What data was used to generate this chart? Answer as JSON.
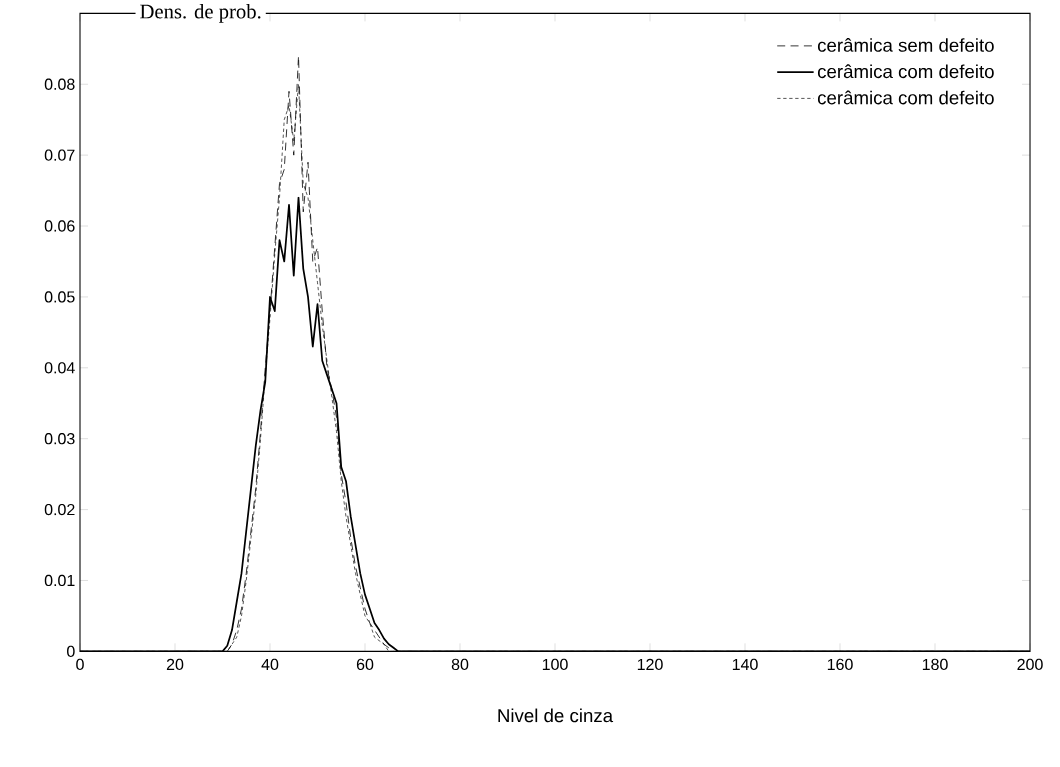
{
  "chart_data": {
    "type": "line",
    "xlabel": "Nivel de cinza",
    "ylabel": "Dens. de prob.",
    "xlim": [
      0,
      200
    ],
    "ylim": [
      0,
      0.09
    ],
    "xticks": [
      0,
      20,
      40,
      60,
      80,
      100,
      120,
      140,
      160,
      180,
      200
    ],
    "yticks": [
      0,
      0.01,
      0.02,
      0.03,
      0.04,
      0.05,
      0.06,
      0.07,
      0.08
    ],
    "legend": "top right",
    "grid": false,
    "series": [
      {
        "name": "cerâmica sem defeito",
        "color": "#000000",
        "line_style": "dashed",
        "x": [
          0,
          31,
          32,
          33,
          34,
          35,
          36,
          37,
          38,
          39,
          40,
          41,
          42,
          43,
          44,
          45,
          46,
          47,
          48,
          49,
          50,
          51,
          52,
          53,
          54,
          55,
          56,
          57,
          58,
          59,
          60,
          61,
          62,
          63,
          64,
          65,
          66,
          200
        ],
        "values": [
          0,
          0,
          0.001,
          0.003,
          0.006,
          0.011,
          0.017,
          0.023,
          0.031,
          0.04,
          0.048,
          0.057,
          0.066,
          0.068,
          0.079,
          0.07,
          0.084,
          0.062,
          0.069,
          0.055,
          0.057,
          0.048,
          0.04,
          0.037,
          0.033,
          0.025,
          0.021,
          0.016,
          0.012,
          0.009,
          0.006,
          0.004,
          0.003,
          0.002,
          0.001,
          0.0005,
          0,
          0
        ]
      },
      {
        "name": "cerâmica com defeito",
        "color": "#000000",
        "line_style": "solid",
        "x": [
          0,
          29,
          30,
          31,
          32,
          33,
          34,
          35,
          36,
          37,
          38,
          39,
          40,
          41,
          42,
          43,
          44,
          45,
          46,
          47,
          48,
          49,
          50,
          51,
          52,
          53,
          54,
          55,
          56,
          57,
          58,
          59,
          60,
          61,
          62,
          63,
          64,
          65,
          66,
          67,
          200
        ],
        "values": [
          0,
          0,
          0,
          0.0008,
          0.003,
          0.007,
          0.011,
          0.017,
          0.023,
          0.029,
          0.034,
          0.038,
          0.05,
          0.048,
          0.058,
          0.055,
          0.063,
          0.053,
          0.064,
          0.054,
          0.05,
          0.043,
          0.049,
          0.041,
          0.039,
          0.037,
          0.035,
          0.026,
          0.024,
          0.019,
          0.015,
          0.011,
          0.008,
          0.006,
          0.004,
          0.003,
          0.0018,
          0.001,
          0.0005,
          0,
          0
        ]
      },
      {
        "name": "cerâmica com defeito",
        "color": "#000000",
        "line_style": "dotted",
        "x": [
          0,
          31,
          32,
          33,
          34,
          35,
          36,
          37,
          38,
          39,
          40,
          41,
          42,
          43,
          44,
          45,
          46,
          47,
          48,
          49,
          50,
          51,
          52,
          53,
          54,
          55,
          56,
          57,
          58,
          59,
          60,
          61,
          62,
          63,
          64,
          65,
          200
        ],
        "values": [
          0,
          0,
          0.001,
          0.002,
          0.005,
          0.01,
          0.016,
          0.022,
          0.03,
          0.039,
          0.047,
          0.056,
          0.064,
          0.075,
          0.077,
          0.072,
          0.08,
          0.066,
          0.064,
          0.058,
          0.052,
          0.046,
          0.041,
          0.036,
          0.031,
          0.024,
          0.019,
          0.015,
          0.011,
          0.008,
          0.005,
          0.004,
          0.002,
          0.0015,
          0.001,
          0,
          0
        ]
      }
    ]
  }
}
